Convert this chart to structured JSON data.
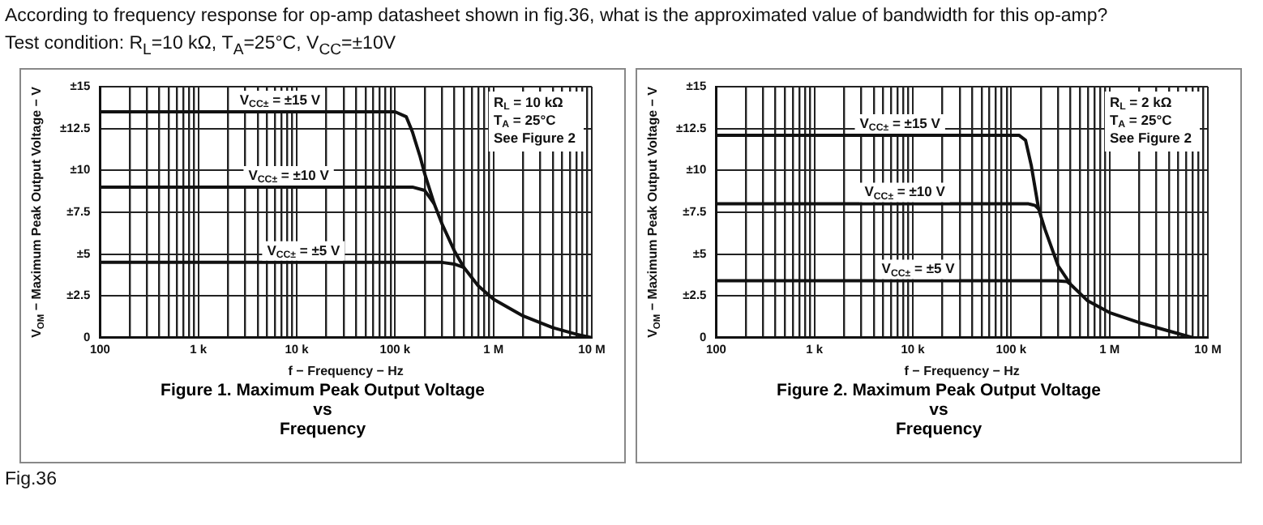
{
  "chart_data": [
    {
      "type": "line",
      "title": "Figure 1. Maximum Peak Output Voltage\nvs\nFrequency",
      "xlabel": "f − Frequency − Hz",
      "ylabel": "V$_{OM}$ − Maximum Peak Output Voltage − V",
      "annotations": [
        "According to frequency response for op-amp datasheet shown in fig.36, what is the approximated value of bandwidth for this op-amp?",
        "Test condition: R$_{L}$=10 kΩ, T$_{A}$=25°C, V$_{CC}$=±10V",
        "R$_{L}$ = 10 kΩ",
        "T$_{A}$ = 25°C",
        "See Figure 2"
      ],
      "log": "x",
      "grid": true,
      "legend": false,
      "marker": "none",
      "line_style": "solid",
      "xlim": [
        100,
        10000000
      ],
      "ylim": [
        0,
        15
      ],
      "xticks": [
        {
          "value": 100,
          "label": "100"
        },
        {
          "value": 200,
          "label": null
        },
        {
          "value": 300,
          "label": null
        },
        {
          "value": 400,
          "label": null
        },
        {
          "value": 500,
          "label": null
        },
        {
          "value": 600,
          "label": null
        },
        {
          "value": 700,
          "label": null
        },
        {
          "value": 800,
          "label": null
        },
        {
          "value": 900,
          "label": null
        },
        {
          "value": 1000,
          "label": "1 k"
        },
        {
          "value": 2000,
          "label": null
        },
        {
          "value": 3000,
          "label": null
        },
        {
          "value": 4000,
          "label": null
        },
        {
          "value": 5000,
          "label": null
        },
        {
          "value": 6000,
          "label": null
        },
        {
          "value": 7000,
          "label": null
        },
        {
          "value": 8000,
          "label": null
        },
        {
          "value": 9000,
          "label": null
        },
        {
          "value": 10000,
          "label": "10 k"
        },
        {
          "value": 20000,
          "label": null
        },
        {
          "value": 30000,
          "label": null
        },
        {
          "value": 40000,
          "label": null
        },
        {
          "value": 50000,
          "label": null
        },
        {
          "value": 60000,
          "label": null
        },
        {
          "value": 70000,
          "label": null
        },
        {
          "value": 80000,
          "label": null
        },
        {
          "value": 90000,
          "label": null
        },
        {
          "value": 100000,
          "label": "100 k"
        },
        {
          "value": 200000,
          "label": null
        },
        {
          "value": 300000,
          "label": null
        },
        {
          "value": 400000,
          "label": null
        },
        {
          "value": 500000,
          "label": null
        },
        {
          "value": 600000,
          "label": null
        },
        {
          "value": 700000,
          "label": null
        },
        {
          "value": 800000,
          "label": null
        },
        {
          "value": 900000,
          "label": null
        },
        {
          "value": 1000000,
          "label": "1 M"
        },
        {
          "value": 2000000,
          "label": null
        },
        {
          "value": 3000000,
          "label": null
        },
        {
          "value": 4000000,
          "label": null
        },
        {
          "value": 5000000,
          "label": null
        },
        {
          "value": 6000000,
          "label": null
        },
        {
          "value": 7000000,
          "label": null
        },
        {
          "value": 8000000,
          "label": null
        },
        {
          "value": 9000000,
          "label": null
        },
        {
          "value": 10000000,
          "label": "10 M"
        }
      ],
      "yticks": [
        0,
        {
          "value": 2.5,
          "label": "±2.5"
        },
        {
          "value": 5,
          "label": "±5"
        },
        {
          "value": 7.5,
          "label": "±7.5"
        },
        {
          "value": 10,
          "label": "±10"
        },
        {
          "value": 12.5,
          "label": "±12.5"
        },
        {
          "value": 15,
          "label": "±15"
        }
      ],
      "series": [
        {
          "name": "V$_{CC±}$ = ±15 V",
          "color": "#111111",
          "x": [
            100,
            100000,
            130000,
            150000,
            180000,
            200000,
            250000,
            300000,
            400000,
            500000,
            700000,
            1000000,
            2000000,
            4000000,
            7000000,
            10000000
          ],
          "values": [
            13.5,
            13.5,
            13.2,
            12.3,
            10.8,
            9.8,
            8,
            6.8,
            5.2,
            4.2,
            3.1,
            2.3,
            1.3,
            0.6,
            0.2,
            0
          ]
        },
        {
          "name": "V$_{CC±}$ = ±10 V",
          "color": "#111111",
          "x": [
            100,
            150000,
            200000,
            230000,
            250000
          ],
          "values": [
            9,
            9,
            8.8,
            8.3,
            8
          ]
        },
        {
          "name": "V$_{CC±}$ = ±5 V",
          "color": "#111111",
          "x": [
            100,
            300000,
            400000,
            500000
          ],
          "values": [
            4.5,
            4.5,
            4.4,
            4.2
          ]
        }
      ]
    },
    {
      "type": "line",
      "title": "Figure 2. Maximum Peak Output Voltage\nvs\nFrequency",
      "xlabel": "f − Frequency − Hz",
      "ylabel": "V$_{OM}$ − Maximum Peak Output Voltage − V",
      "annotations": [
        "R$_{L}$ = 2 kΩ",
        "T$_{A}$ = 25°C",
        "See Figure 2",
        "Fig.36"
      ],
      "log": "x",
      "grid": true,
      "legend": false,
      "marker": "none",
      "line_style": "solid",
      "xlim": [
        100,
        10000000
      ],
      "ylim": [
        0,
        15
      ],
      "xticks": [
        {
          "value": 100,
          "label": "100"
        },
        {
          "value": 200,
          "label": null
        },
        {
          "value": 300,
          "label": null
        },
        {
          "value": 400,
          "label": null
        },
        {
          "value": 500,
          "label": null
        },
        {
          "value": 600,
          "label": null
        },
        {
          "value": 700,
          "label": null
        },
        {
          "value": 800,
          "label": null
        },
        {
          "value": 900,
          "label": null
        },
        {
          "value": 1000,
          "label": "1 k"
        },
        {
          "value": 2000,
          "label": null
        },
        {
          "value": 3000,
          "label": null
        },
        {
          "value": 4000,
          "label": null
        },
        {
          "value": 5000,
          "label": null
        },
        {
          "value": 6000,
          "label": null
        },
        {
          "value": 7000,
          "label": null
        },
        {
          "value": 8000,
          "label": null
        },
        {
          "value": 9000,
          "label": null
        },
        {
          "value": 10000,
          "label": "10 k"
        },
        {
          "value": 20000,
          "label": null
        },
        {
          "value": 30000,
          "label": null
        },
        {
          "value": 40000,
          "label": null
        },
        {
          "value": 50000,
          "label": null
        },
        {
          "value": 60000,
          "label": null
        },
        {
          "value": 70000,
          "label": null
        },
        {
          "value": 80000,
          "label": null
        },
        {
          "value": 90000,
          "label": null
        },
        {
          "value": 100000,
          "label": "100 k"
        },
        {
          "value": 200000,
          "label": null
        },
        {
          "value": 300000,
          "label": null
        },
        {
          "value": 400000,
          "label": null
        },
        {
          "value": 500000,
          "label": null
        },
        {
          "value": 600000,
          "label": null
        },
        {
          "value": 700000,
          "label": null
        },
        {
          "value": 800000,
          "label": null
        },
        {
          "value": 900000,
          "label": null
        },
        {
          "value": 1000000,
          "label": "1 M"
        },
        {
          "value": 2000000,
          "label": null
        },
        {
          "value": 3000000,
          "label": null
        },
        {
          "value": 4000000,
          "label": null
        },
        {
          "value": 5000000,
          "label": null
        },
        {
          "value": 6000000,
          "label": null
        },
        {
          "value": 7000000,
          "label": null
        },
        {
          "value": 8000000,
          "label": null
        },
        {
          "value": 9000000,
          "label": null
        },
        {
          "value": 10000000,
          "label": "10 M"
        }
      ],
      "yticks": [
        0,
        {
          "value": 2.5,
          "label": "±2.5"
        },
        {
          "value": 5,
          "label": "±5"
        },
        {
          "value": 7.5,
          "label": "±7.5"
        },
        {
          "value": 10,
          "label": "±10"
        },
        {
          "value": 12.5,
          "label": "±12.5"
        },
        {
          "value": 15,
          "label": "±15"
        }
      ],
      "series": [
        {
          "name": "V$_{CC±}$ = ±15 V",
          "color": "#111111",
          "x": [
            100,
            120000,
            140000,
            160000,
            190000,
            220000,
            300000,
            400000,
            600000,
            1000000,
            2000000,
            4000000,
            7000000
          ],
          "values": [
            12.1,
            12.1,
            11.8,
            10.3,
            7.7,
            6.5,
            4.3,
            3.2,
            2.2,
            1.5,
            0.9,
            0.4,
            0
          ]
        },
        {
          "name": "V$_{CC±}$ = ±10 V",
          "color": "#111111",
          "x": [
            100,
            150000,
            175000,
            190000
          ],
          "values": [
            8,
            8,
            7.9,
            7.7
          ]
        },
        {
          "name": "V$_{CC±}$ = ±5 V",
          "color": "#111111",
          "x": [
            100,
            280000,
            370000,
            400000
          ],
          "values": [
            3.4,
            3.4,
            3.35,
            3.2
          ]
        }
      ]
    }
  ]
}
